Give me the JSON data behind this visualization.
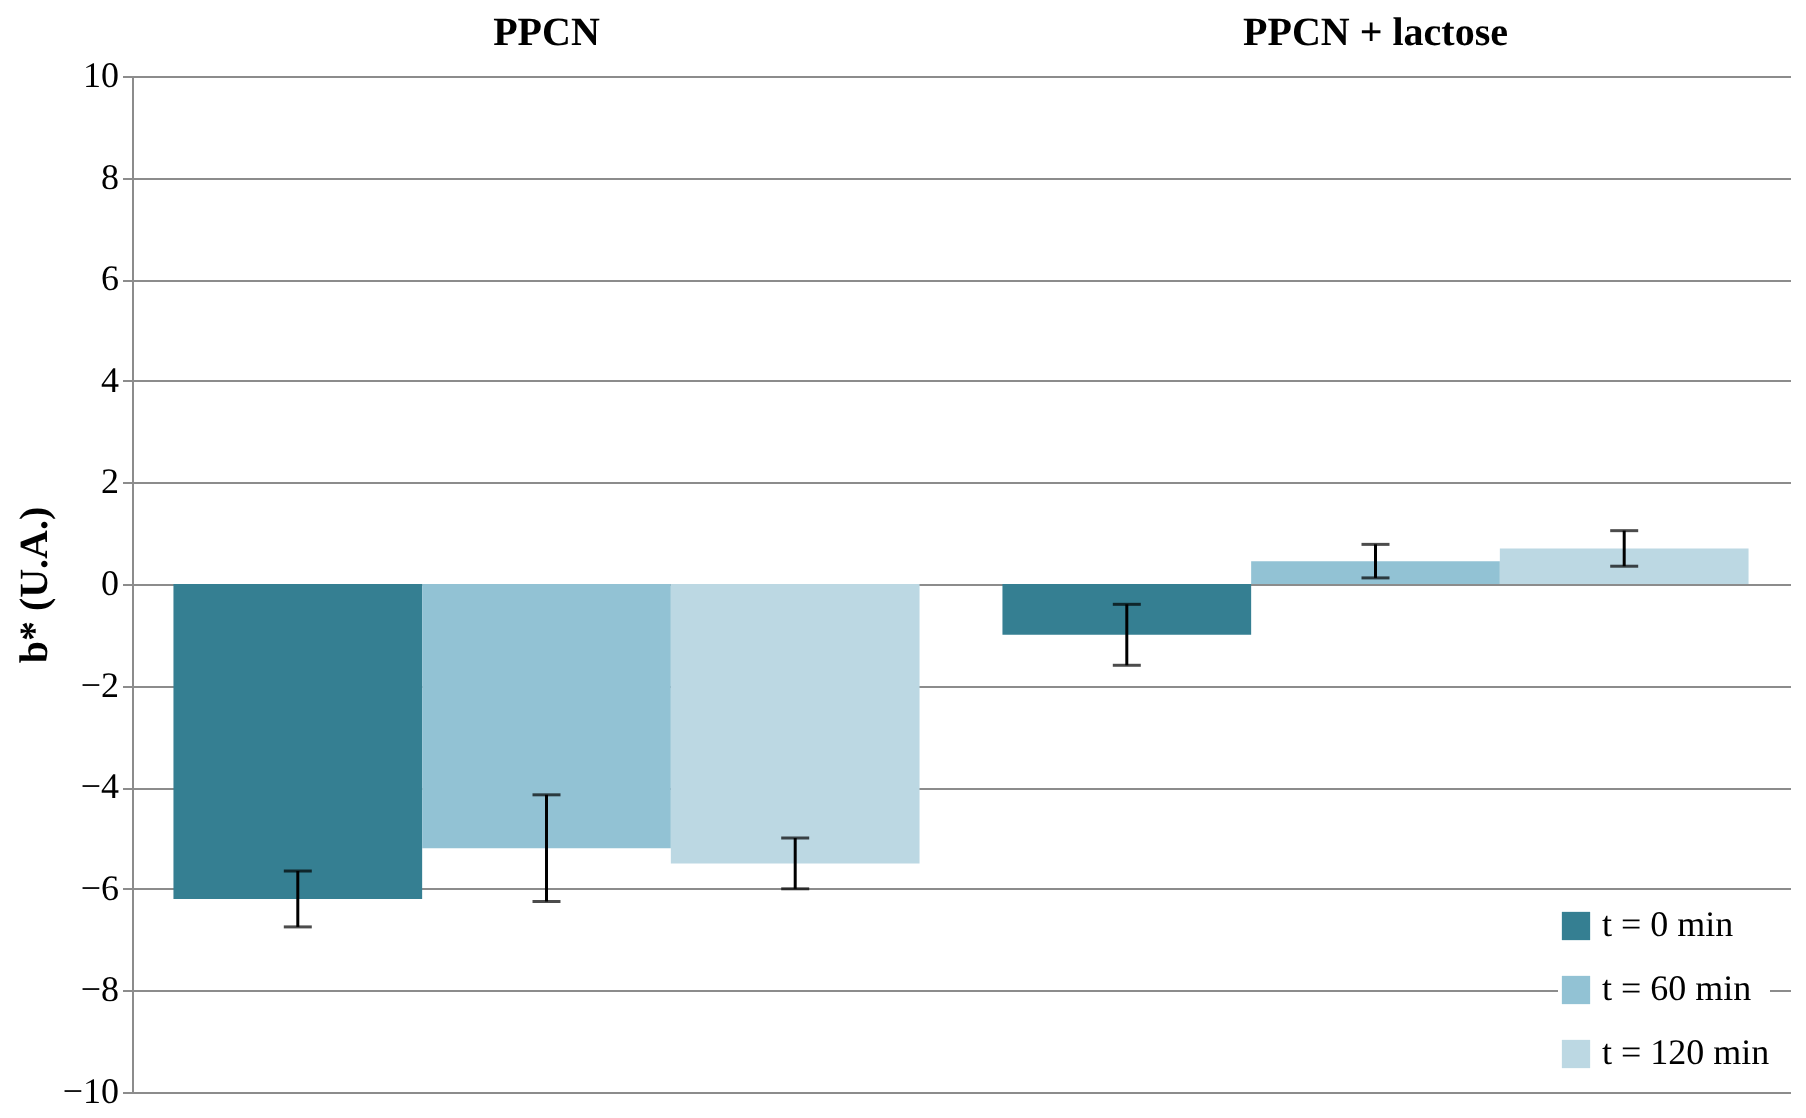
{
  "chart_data": {
    "type": "bar",
    "ylabel": "b* (U.A.)",
    "categories": [
      "PPCN",
      "PPCN + lactose"
    ],
    "series": [
      {
        "name": "t = 0 min",
        "color": "#357f92",
        "values": [
          -6.2,
          -1.0
        ],
        "errors": [
          0.55,
          0.6
        ]
      },
      {
        "name": "t = 60 min",
        "color": "#92c2d4",
        "values": [
          -5.2,
          0.45
        ],
        "errors": [
          1.05,
          0.33
        ]
      },
      {
        "name": "t = 120 min",
        "color": "#bcd8e3",
        "values": [
          -5.5,
          0.7
        ],
        "errors": [
          0.5,
          0.35
        ]
      }
    ],
    "ylim": [
      -10,
      10
    ],
    "yticks": [
      -10,
      -8,
      -6,
      -4,
      -2,
      0,
      2,
      4,
      6,
      8,
      10
    ],
    "grid": "y",
    "legend": "bottom right"
  }
}
